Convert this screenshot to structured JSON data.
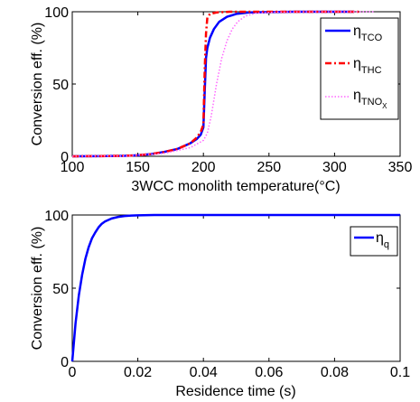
{
  "chart_data": [
    {
      "type": "line",
      "xlabel": "3WCC monolith temperature(°C)",
      "ylabel": "Conversion eff. (%)",
      "xlim": [
        100,
        350
      ],
      "ylim": [
        0,
        100
      ],
      "xticks": [
        "100",
        "150",
        "200",
        "250",
        "300",
        "350"
      ],
      "yticks": [
        "0",
        "50",
        "100"
      ],
      "legend_position": "right",
      "series": [
        {
          "name": "η_TCO",
          "label_main": "η",
          "label_sub": "TCO",
          "color": "#0000ff",
          "style": "solid",
          "x": [
            100,
            120,
            140,
            150,
            160,
            170,
            180,
            185,
            190,
            195,
            198,
            200,
            201,
            202,
            203,
            205,
            208,
            212,
            218,
            225,
            235,
            250,
            270,
            290,
            315
          ],
          "y": [
            0,
            0.1,
            0.3,
            0.7,
            1.5,
            3,
            5,
            7,
            9,
            12,
            15,
            20,
            45,
            68,
            75,
            82,
            88,
            93,
            96.5,
            98.5,
            99.5,
            99.8,
            100,
            100,
            100
          ]
        },
        {
          "name": "η_THC",
          "label_main": "η",
          "label_sub": "THC",
          "color": "#ff0000",
          "style": "dashdot",
          "x": [
            100,
            120,
            140,
            150,
            160,
            170,
            180,
            185,
            190,
            195,
            198,
            200,
            201,
            202,
            203,
            205,
            210,
            220,
            240,
            260,
            280,
            300,
            320
          ],
          "y": [
            0,
            0.1,
            0.3,
            0.7,
            1.5,
            3,
            5,
            7,
            9,
            13,
            17,
            22,
            60,
            85,
            96,
            98.5,
            99.5,
            100,
            100,
            100,
            100,
            100,
            100
          ]
        },
        {
          "name": "η_TNOX",
          "label_main": "η",
          "label_sub": "TNO",
          "label_subsub": "X",
          "color": "#ff66ff",
          "style": "dotted",
          "x": [
            100,
            140,
            170,
            190,
            200,
            203,
            206,
            210,
            214,
            218,
            222,
            226,
            232,
            240,
            255,
            275,
            300,
            330
          ],
          "y": [
            0,
            0.2,
            2,
            6,
            11,
            16,
            28,
            50,
            68,
            80,
            88,
            93,
            97,
            99,
            99.8,
            100,
            100,
            100
          ]
        }
      ]
    },
    {
      "type": "line",
      "xlabel": "Residence time (s)",
      "ylabel": "Conversion eff. (%)",
      "xlim": [
        0,
        0.1
      ],
      "ylim": [
        0,
        100
      ],
      "xticks": [
        "0",
        "0.02",
        "0.04",
        "0.06",
        "0.08",
        "0.1"
      ],
      "yticks": [
        "0",
        "50",
        "100"
      ],
      "legend_position": "top-right",
      "series": [
        {
          "name": "η_q",
          "label_main": "η",
          "label_sub": "q",
          "color": "#0000ff",
          "style": "solid",
          "x": [
            0,
            0.001,
            0.002,
            0.003,
            0.004,
            0.005,
            0.006,
            0.007,
            0.008,
            0.009,
            0.01,
            0.012,
            0.014,
            0.016,
            0.018,
            0.02,
            0.025,
            0.03,
            0.04,
            0.06,
            0.08,
            0.1
          ],
          "y": [
            0,
            26,
            45,
            59,
            70,
            78,
            84,
            88,
            91.5,
            94,
            95.6,
            97.6,
            98.7,
            99.3,
            99.6,
            99.8,
            100,
            100,
            100,
            100,
            100,
            100
          ]
        }
      ]
    }
  ]
}
